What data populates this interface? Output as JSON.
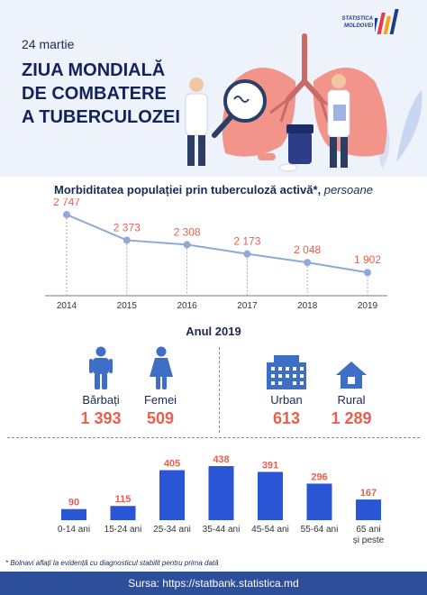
{
  "logo": {
    "line1": "STATISTICA",
    "line2": "MOLDOVEI"
  },
  "header": {
    "date": "24 martie",
    "title_lines": [
      "ZIUA MONDIALĂ",
      "DE COMBATERE",
      "A TUBERCULOZEI"
    ]
  },
  "chart1": {
    "title": "Morbiditatea populației prin tuberculoză activă*,",
    "title_italic": " persoane"
  },
  "chart_data": [
    {
      "type": "line",
      "title": "Morbiditatea populației prin tuberculoză activă*, persoane",
      "x": [
        "2014",
        "2015",
        "2016",
        "2017",
        "2018",
        "2019"
      ],
      "values": [
        2747,
        2373,
        2308,
        2173,
        2048,
        1902
      ],
      "data_labels": [
        "2 747",
        "2 373",
        "2 308",
        "2 173",
        "2 048",
        "1 902"
      ],
      "color": "#8fa8d8"
    },
    {
      "type": "bar",
      "categories": [
        "0-14 ani",
        "15-24 ani",
        "25-34 ani",
        "35-44 ani",
        "45-54 ani",
        "55-64 ani",
        "65 ani și peste"
      ],
      "category_lines": [
        [
          "0-14 ani"
        ],
        [
          "15-24 ani"
        ],
        [
          "25-34 ani"
        ],
        [
          "35-44 ani"
        ],
        [
          "45-54 ani"
        ],
        [
          "55-64 ani"
        ],
        [
          "65 ani",
          "și peste"
        ]
      ],
      "values": [
        90,
        115,
        405,
        438,
        391,
        296,
        167
      ],
      "color": "#2a55d4"
    }
  ],
  "year_section": {
    "title": "Anul 2019",
    "men_label": "Bărbați",
    "men_value": "1 393",
    "women_label": "Femei",
    "women_value": "509",
    "urban_label": "Urban",
    "urban_value": "613",
    "rural_label": "Rural",
    "rural_value": "1 289"
  },
  "colors": {
    "accent": "#e8604d",
    "icon": "#3f6ec6",
    "footer": "#2d4f9a"
  },
  "footnote": "* Bolnavi aflați la evidență cu diagnosticul stabilit pentru prima dată",
  "footer": "Sursa: https://statbank.statistica.md"
}
